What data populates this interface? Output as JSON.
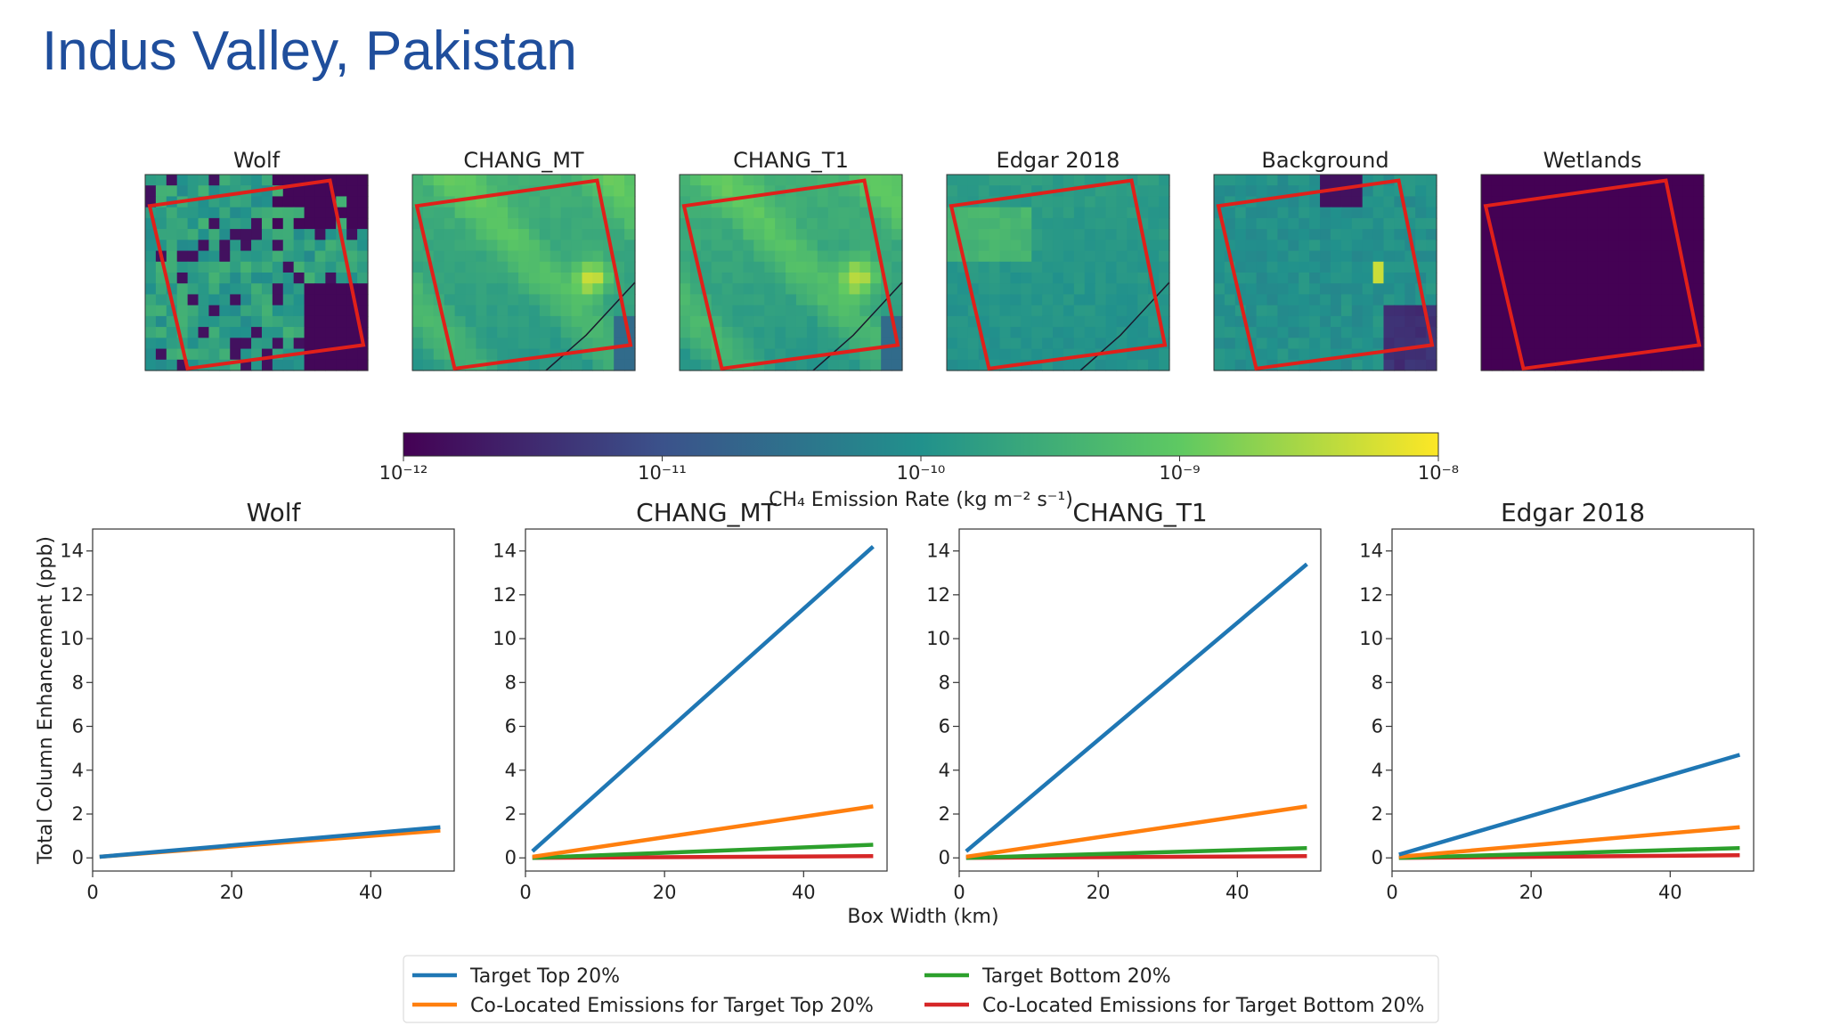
{
  "slide": {
    "title": "Indus Valley, Pakistan"
  },
  "colors": {
    "title": "#1f4e9c",
    "box_outline": "#e0201a",
    "viridis": [
      "#440154",
      "#3b528b",
      "#21918c",
      "#5ec962",
      "#fde725"
    ]
  },
  "chart_data": [
    {
      "type": "heatmap",
      "panels": [
        {
          "title": "Wolf",
          "rotated_box": true
        },
        {
          "title": "CHANG_MT",
          "rotated_box": true
        },
        {
          "title": "CHANG_T1",
          "rotated_box": true
        },
        {
          "title": "Edgar 2018",
          "rotated_box": true
        },
        {
          "title": "Background",
          "rotated_box": true
        },
        {
          "title": "Wetlands",
          "rotated_box": true
        }
      ],
      "colorbar": {
        "label": "CH₄ Emission Rate (kg m⁻² s⁻¹)",
        "scale": "log",
        "range": [
          1e-12,
          1e-08
        ],
        "tick_labels": [
          "10⁻¹²",
          "10⁻¹¹",
          "10⁻¹⁰",
          "10⁻⁹",
          "10⁻⁸"
        ],
        "colormap": "viridis"
      }
    },
    {
      "type": "line",
      "xlabel": "Box Width (km)",
      "ylabel": "Total Column Enhancement (ppb)",
      "xlim": [
        0,
        52
      ],
      "ylim": [
        -0.6,
        15
      ],
      "xticks": [
        0,
        20,
        40
      ],
      "yticks": [
        0,
        2,
        4,
        6,
        8,
        10,
        12,
        14
      ],
      "x": [
        1,
        50
      ],
      "legend": {
        "placement": "bottom-center",
        "entries": [
          {
            "name": "Target Top 20%",
            "color": "#1f77b4"
          },
          {
            "name": "Target Bottom 20%",
            "color": "#2ca02c"
          },
          {
            "name": "Co-Located Emissions for Target Top 20%",
            "color": "#ff7f0e"
          },
          {
            "name": "Co-Located Emissions for Target Bottom 20%",
            "color": "#d62728"
          }
        ]
      },
      "subplots": [
        {
          "title": "Wolf",
          "series": [
            {
              "name": "Target Top 20%",
              "color": "#1f77b4",
              "values": [
                0.05,
                1.4
              ]
            },
            {
              "name": "Co-Located Emissions for Target Top 20%",
              "color": "#ff7f0e",
              "values": [
                0.05,
                1.25
              ]
            }
          ]
        },
        {
          "title": "CHANG_MT",
          "series": [
            {
              "name": "Target Top 20%",
              "color": "#1f77b4",
              "values": [
                0.3,
                14.2
              ]
            },
            {
              "name": "Co-Located Emissions for Target Top 20%",
              "color": "#ff7f0e",
              "values": [
                0.05,
                2.35
              ]
            },
            {
              "name": "Target Bottom 20%",
              "color": "#2ca02c",
              "values": [
                0.0,
                0.6
              ]
            },
            {
              "name": "Co-Located Emissions for Target Bottom 20%",
              "color": "#d62728",
              "values": [
                0.0,
                0.08
              ]
            }
          ]
        },
        {
          "title": "CHANG_T1",
          "series": [
            {
              "name": "Target Top 20%",
              "color": "#1f77b4",
              "values": [
                0.3,
                13.4
              ]
            },
            {
              "name": "Co-Located Emissions for Target Top 20%",
              "color": "#ff7f0e",
              "values": [
                0.05,
                2.35
              ]
            },
            {
              "name": "Target Bottom 20%",
              "color": "#2ca02c",
              "values": [
                0.0,
                0.45
              ]
            },
            {
              "name": "Co-Located Emissions for Target Bottom 20%",
              "color": "#d62728",
              "values": [
                0.0,
                0.08
              ]
            }
          ]
        },
        {
          "title": "Edgar 2018",
          "series": [
            {
              "name": "Target Top 20%",
              "color": "#1f77b4",
              "values": [
                0.15,
                4.7
              ]
            },
            {
              "name": "Co-Located Emissions for Target Top 20%",
              "color": "#ff7f0e",
              "values": [
                0.05,
                1.4
              ]
            },
            {
              "name": "Target Bottom 20%",
              "color": "#2ca02c",
              "values": [
                0.0,
                0.45
              ]
            },
            {
              "name": "Co-Located Emissions for Target Bottom 20%",
              "color": "#d62728",
              "values": [
                0.0,
                0.12
              ]
            }
          ]
        }
      ]
    }
  ]
}
